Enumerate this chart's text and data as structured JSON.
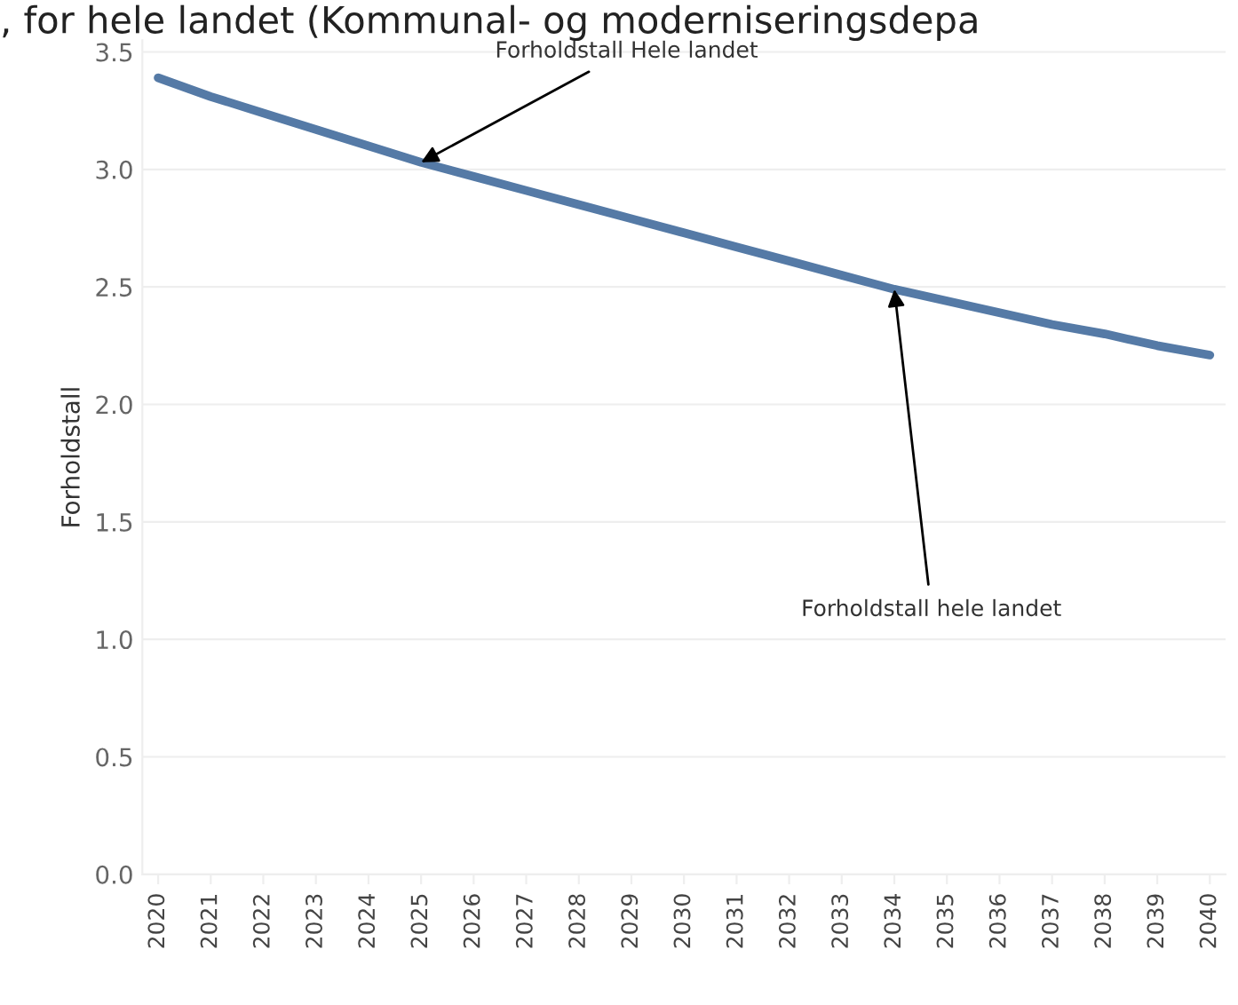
{
  "chart_data": {
    "type": "line",
    "title": ", for hele landet (Kommunal- og moderniseringsdepa",
    "ylabel": "Forholdstall",
    "categories": [
      "2020",
      "2021",
      "2022",
      "2023",
      "2024",
      "2025",
      "2026",
      "2027",
      "2028",
      "2029",
      "2030",
      "2031",
      "2032",
      "2033",
      "2034",
      "2035",
      "2036",
      "2037",
      "2038",
      "2039",
      "2040"
    ],
    "series": [
      {
        "color": "#557aa6",
        "values": [
          3.39,
          3.31,
          3.24,
          3.17,
          3.1,
          3.03,
          2.97,
          2.91,
          2.85,
          2.79,
          2.73,
          2.67,
          2.61,
          2.55,
          2.49,
          2.44,
          2.39,
          2.34,
          2.3,
          2.25,
          2.21
        ]
      }
    ],
    "ylim": [
      0,
      3.55
    ],
    "yticks": [
      {
        "value": 0,
        "label": "0.0"
      },
      0.5,
      {
        "value": 1,
        "label": "1.0"
      },
      1.5,
      {
        "value": 2,
        "label": "2.0"
      },
      2.5,
      {
        "value": 3,
        "label": "3.0"
      },
      3.5
    ],
    "grid": "y",
    "marker": "none",
    "line_style": "solid",
    "annotations": [
      {
        "text": "Forholdstall Hele landet",
        "x": "2025",
        "y": 3.03
      },
      {
        "text": "Forholdstall hele landet",
        "x": "2034",
        "y": 2.49
      }
    ]
  }
}
